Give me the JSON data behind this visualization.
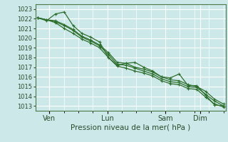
{
  "title": "",
  "xlabel": "Pression niveau de la mer( hPa )",
  "ylabel": "",
  "bg_color": "#cce8e8",
  "grid_color": "#ffffff",
  "line_color": "#2d6e2d",
  "ylim": [
    1012.5,
    1023.5
  ],
  "yticks": [
    1013,
    1014,
    1015,
    1016,
    1017,
    1018,
    1019,
    1020,
    1021,
    1022,
    1023
  ],
  "day_labels": [
    "Ven",
    "Lun",
    "Sam",
    "Dim"
  ],
  "day_positions": [
    0.5,
    3.0,
    5.5,
    7.0
  ],
  "series": [
    [
      1022.1,
      1021.8,
      1022.5,
      1022.7,
      1021.3,
      1020.5,
      1020.1,
      1019.6,
      1018.0,
      1017.2,
      1017.4,
      1017.5,
      1017.0,
      1016.6,
      1016.0,
      1015.9,
      1016.3,
      1015.1,
      1015.1,
      1014.1,
      1013.1,
      1013.0
    ],
    [
      1022.1,
      1021.9,
      1021.8,
      1021.4,
      1020.9,
      1020.2,
      1019.8,
      1019.3,
      1018.5,
      1017.5,
      1017.4,
      1017.0,
      1016.8,
      1016.5,
      1016.0,
      1015.7,
      1015.6,
      1015.2,
      1015.0,
      1014.5,
      1013.7,
      1013.2
    ],
    [
      1022.1,
      1021.9,
      1021.7,
      1021.3,
      1020.8,
      1020.1,
      1019.7,
      1019.2,
      1018.3,
      1017.3,
      1017.2,
      1016.9,
      1016.6,
      1016.3,
      1015.8,
      1015.5,
      1015.4,
      1015.0,
      1014.9,
      1014.2,
      1013.5,
      1013.0
    ],
    [
      1022.1,
      1021.9,
      1021.6,
      1021.0,
      1020.5,
      1019.9,
      1019.5,
      1019.0,
      1018.0,
      1017.1,
      1016.9,
      1016.6,
      1016.4,
      1016.1,
      1015.6,
      1015.3,
      1015.2,
      1014.8,
      1014.7,
      1013.9,
      1013.2,
      1012.9
    ]
  ],
  "num_points": 22,
  "xlim": [
    -0.1,
    8.1
  ]
}
